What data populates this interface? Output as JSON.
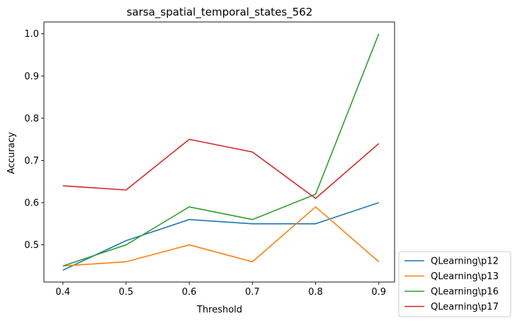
{
  "chart_data": {
    "type": "line",
    "title": "sarsa_spatial_temporal_states_562",
    "xlabel": "Threshold",
    "ylabel": "Accuracy",
    "x": [
      0.4,
      0.5,
      0.6,
      0.7,
      0.8,
      0.9
    ],
    "xticks": [
      "0.4",
      "0.5",
      "0.6",
      "0.7",
      "0.8",
      "0.9"
    ],
    "yticks": [
      "0.5",
      "0.6",
      "0.7",
      "0.8",
      "0.9",
      "1.0"
    ],
    "xlim": [
      0.37,
      0.925
    ],
    "ylim": [
      0.412,
      1.028
    ],
    "grid": false,
    "legend_position": "outside-lower-right",
    "series": [
      {
        "name": "QLearning\\p12",
        "color": "#1f77b4",
        "values": [
          0.44,
          0.51,
          0.56,
          0.55,
          0.55,
          0.6
        ]
      },
      {
        "name": "QLearning\\p13",
        "color": "#ff7f0e",
        "values": [
          0.45,
          0.46,
          0.5,
          0.46,
          0.59,
          0.46
        ]
      },
      {
        "name": "QLearning\\p16",
        "color": "#2ca02c",
        "values": [
          0.45,
          0.5,
          0.59,
          0.56,
          0.62,
          1.0
        ]
      },
      {
        "name": "QLearning\\p17",
        "color": "#d62728",
        "values": [
          0.64,
          0.63,
          0.75,
          0.72,
          0.61,
          0.74
        ]
      }
    ]
  }
}
